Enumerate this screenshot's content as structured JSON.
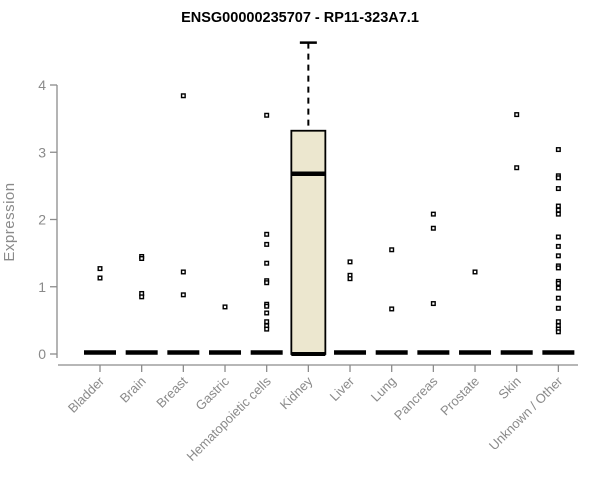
{
  "chart_data": {
    "type": "boxplot",
    "title": "ENSG00000235707 - RP11-323A7.1",
    "xlabel": "",
    "ylabel": "Expression",
    "ylim": [
      0,
      4.7
    ],
    "yticks": [
      0,
      1,
      2,
      3,
      4
    ],
    "grid": false,
    "legend": "none",
    "colors": {
      "box_fill": "#ece7cf",
      "box_stroke": "#000000",
      "axis": "#8c8c8c",
      "tick_label": "#8a8a8a",
      "point_stroke": "#000000",
      "point_fill": "#ffffff"
    },
    "categories": [
      "Bladder",
      "Brain",
      "Breast",
      "Gastric",
      "Hematopoietic cells",
      "Kidney",
      "Liver",
      "Lung",
      "Pancreas",
      "Prostate",
      "Skin",
      "Unknown / Other"
    ],
    "boxes": [
      {
        "category": "Bladder",
        "q1": 0,
        "median": 0,
        "q3": 0,
        "whisker_low": 0,
        "whisker_high": 0,
        "outliers": [
          1.27,
          1.13
        ]
      },
      {
        "category": "Brain",
        "q1": 0,
        "median": 0,
        "q3": 0,
        "whisker_low": 0,
        "whisker_high": 0,
        "outliers": [
          1.45,
          1.42,
          0.9,
          0.85
        ]
      },
      {
        "category": "Breast",
        "q1": 0,
        "median": 0,
        "q3": 0,
        "whisker_low": 0,
        "whisker_high": 0,
        "outliers": [
          3.84,
          1.22,
          0.88
        ]
      },
      {
        "category": "Gastric",
        "q1": 0,
        "median": 0,
        "q3": 0,
        "whisker_low": 0,
        "whisker_high": 0,
        "outliers": [
          0.7
        ]
      },
      {
        "category": "Hematopoietic cells",
        "q1": 0,
        "median": 0,
        "q3": 0,
        "whisker_low": 0,
        "whisker_high": 0,
        "outliers": [
          3.55,
          1.78,
          1.63,
          1.35,
          1.09,
          1.06,
          0.74,
          0.71,
          0.61,
          0.48,
          0.42,
          0.37
        ]
      },
      {
        "category": "Kidney",
        "q1": 0,
        "median": 2.68,
        "q3": 3.32,
        "whisker_low": 0,
        "whisker_high": 4.63,
        "outliers": []
      },
      {
        "category": "Liver",
        "q1": 0,
        "median": 0,
        "q3": 0,
        "whisker_low": 0,
        "whisker_high": 0,
        "outliers": [
          1.37,
          1.17,
          1.12
        ]
      },
      {
        "category": "Lung",
        "q1": 0,
        "median": 0,
        "q3": 0,
        "whisker_low": 0,
        "whisker_high": 0,
        "outliers": [
          1.55,
          0.67
        ]
      },
      {
        "category": "Pancreas",
        "q1": 0,
        "median": 0,
        "q3": 0,
        "whisker_low": 0,
        "whisker_high": 0,
        "outliers": [
          2.08,
          1.87,
          0.75
        ]
      },
      {
        "category": "Prostate",
        "q1": 0,
        "median": 0,
        "q3": 0,
        "whisker_low": 0,
        "whisker_high": 0,
        "outliers": [
          1.22
        ]
      },
      {
        "category": "Skin",
        "q1": 0,
        "median": 0,
        "q3": 0,
        "whisker_low": 0,
        "whisker_high": 0,
        "outliers": [
          3.56,
          2.77
        ]
      },
      {
        "category": "Unknown / Other",
        "q1": 0,
        "median": 0,
        "q3": 0,
        "whisker_low": 0,
        "whisker_high": 0,
        "outliers": [
          3.04,
          2.65,
          2.62,
          2.46,
          2.2,
          2.14,
          2.08,
          1.74,
          1.6,
          1.46,
          1.31,
          1.28,
          1.08,
          1.05,
          0.98,
          0.83,
          0.68,
          0.48,
          0.42,
          0.37,
          0.33
        ]
      }
    ]
  }
}
